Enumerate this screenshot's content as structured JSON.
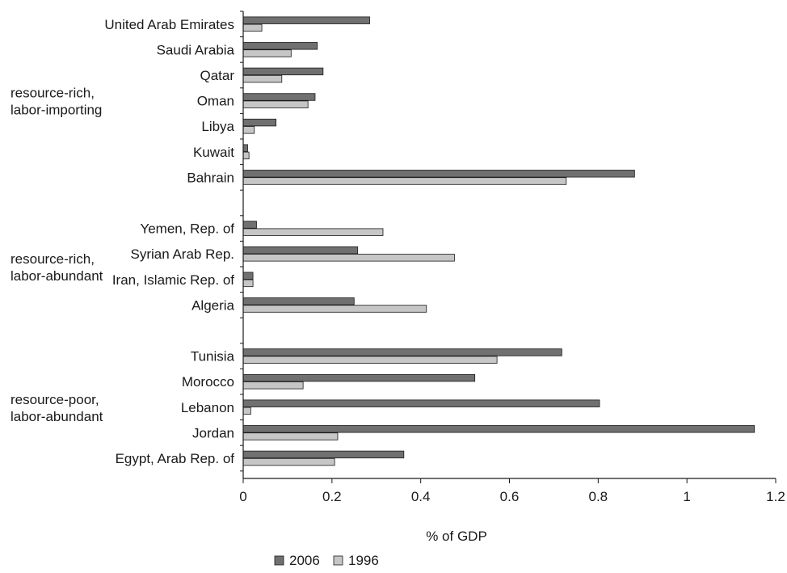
{
  "chart_data": {
    "type": "bar",
    "orientation": "horizontal",
    "xlabel": "% of GDP",
    "xlim": [
      0,
      1.2
    ],
    "xticks": [
      "0",
      "0.2",
      "0.4",
      "0.6",
      "0.8",
      "1",
      "1.2"
    ],
    "grid": false,
    "legend_position": "bottom",
    "series": [
      {
        "name": "2006",
        "color": "#707070"
      },
      {
        "name": "1996",
        "color": "#c6c6c6"
      }
    ],
    "groups": [
      {
        "label_lines": [
          "resource-rich,",
          "labor-importing"
        ],
        "categories": [
          {
            "name": "United Arab Emirates",
            "values": [
              0.285,
              0.042
            ]
          },
          {
            "name": "Saudi Arabia",
            "values": [
              0.167,
              0.108
            ]
          },
          {
            "name": "Qatar",
            "values": [
              0.18,
              0.087
            ]
          },
          {
            "name": "Oman",
            "values": [
              0.162,
              0.146
            ]
          },
          {
            "name": "Libya",
            "values": [
              0.074,
              0.025
            ]
          },
          {
            "name": "Kuwait",
            "values": [
              0.01,
              0.013
            ]
          },
          {
            "name": "Bahrain",
            "values": [
              0.882,
              0.728
            ]
          }
        ]
      },
      {
        "label_lines": [
          "resource-rich,",
          "labor-abundant"
        ],
        "categories": [
          {
            "name": "Yemen, Rep. of",
            "values": [
              0.03,
              0.315
            ]
          },
          {
            "name": "Syrian Arab Rep.",
            "values": [
              0.258,
              0.476
            ]
          },
          {
            "name": "Iran, Islamic Rep. of",
            "values": [
              0.022,
              0.022
            ]
          },
          {
            "name": "Algeria",
            "values": [
              0.25,
              0.413
            ]
          }
        ]
      },
      {
        "label_lines": [
          "resource-poor,",
          "labor-abundant"
        ],
        "categories": [
          {
            "name": "Tunisia",
            "values": [
              0.718,
              0.572
            ]
          },
          {
            "name": "Morocco",
            "values": [
              0.522,
              0.135
            ]
          },
          {
            "name": "Lebanon",
            "values": [
              0.803,
              0.017
            ]
          },
          {
            "name": "Jordan",
            "values": [
              1.152,
              0.213
            ]
          },
          {
            "name": "Egypt, Arab Rep. of",
            "values": [
              0.362,
              0.206
            ]
          }
        ]
      }
    ]
  }
}
